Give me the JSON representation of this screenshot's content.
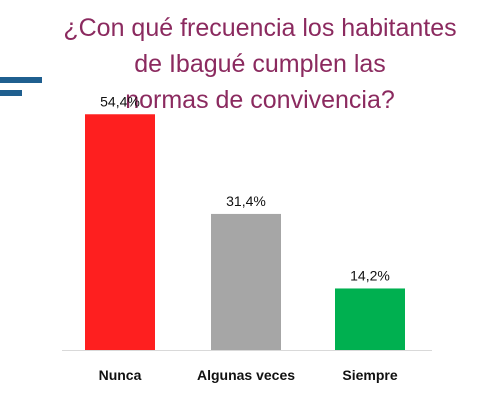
{
  "title_lines": [
    "¿Con qué frecuencia los habitantes",
    "de Ibagué cumplen las",
    "normas de convivencia?"
  ],
  "colors": {
    "title": "#8b2a5f",
    "accent_bars": "#1f5f8f",
    "axis": "#d9d9d9"
  },
  "chart_data": {
    "type": "bar",
    "title": "¿Con qué frecuencia los habitantes de Ibagué cumplen las normas de convivencia?",
    "xlabel": "",
    "ylabel": "",
    "categories": [
      "Nunca",
      "Algunas veces",
      "Siempre"
    ],
    "values": [
      54.4,
      31.4,
      14.2
    ],
    "data_labels": [
      "54,4%",
      "31,4%",
      "14,2%"
    ],
    "colors": [
      "#fe1f1f",
      "#a6a6a6",
      "#00b050"
    ],
    "unit": "%",
    "ylim": [
      0,
      60
    ],
    "grid": false,
    "legend": "none"
  }
}
